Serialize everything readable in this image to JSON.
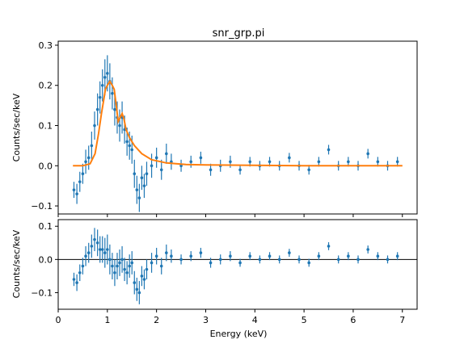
{
  "chart_data": [
    {
      "panel": "fit",
      "type": "scatter",
      "title": "snr_grp.pi",
      "ylabel": "Counts/sec/keV",
      "xlim": [
        0,
        7.3
      ],
      "ylim": [
        -0.12,
        0.31
      ],
      "xticks": [
        0,
        1,
        2,
        3,
        4,
        5,
        6,
        7
      ],
      "yticks": [
        -0.1,
        0.0,
        0.1,
        0.2,
        0.3
      ],
      "ytick_labels": [
        "−0.1",
        "0.0",
        "0.1",
        "0.2",
        "0.3"
      ],
      "grid": false,
      "series": [
        {
          "kind": "errorbar",
          "color": "#1f77b4",
          "x": [
            0.32,
            0.38,
            0.44,
            0.5,
            0.56,
            0.62,
            0.68,
            0.74,
            0.8,
            0.85,
            0.9,
            0.95,
            1.0,
            1.05,
            1.1,
            1.15,
            1.2,
            1.25,
            1.3,
            1.35,
            1.4,
            1.45,
            1.5,
            1.55,
            1.6,
            1.65,
            1.7,
            1.75,
            1.8,
            1.9,
            2.0,
            2.1,
            2.2,
            2.3,
            2.5,
            2.7,
            2.9,
            3.1,
            3.3,
            3.5,
            3.7,
            3.9,
            4.1,
            4.3,
            4.5,
            4.7,
            4.9,
            5.1,
            5.3,
            5.5,
            5.7,
            5.9,
            6.1,
            6.3,
            6.5,
            6.7,
            6.9
          ],
          "y": [
            -0.06,
            -0.07,
            -0.04,
            -0.02,
            0.01,
            0.02,
            0.05,
            0.1,
            0.14,
            0.17,
            0.2,
            0.22,
            0.23,
            0.21,
            0.18,
            0.14,
            0.12,
            0.1,
            0.12,
            0.09,
            0.06,
            0.05,
            0.04,
            -0.02,
            -0.06,
            -0.08,
            -0.03,
            -0.05,
            -0.02,
            0.0,
            0.02,
            -0.01,
            0.03,
            0.01,
            0.0,
            0.01,
            0.02,
            -0.01,
            0.0,
            0.01,
            -0.01,
            0.01,
            0.0,
            0.01,
            0.0,
            0.02,
            0.0,
            -0.01,
            0.01,
            0.04,
            0.0,
            0.01,
            0.0,
            0.03,
            0.01,
            0.0,
            0.01
          ],
          "yerr": [
            0.02,
            0.025,
            0.025,
            0.025,
            0.03,
            0.03,
            0.035,
            0.035,
            0.04,
            0.04,
            0.04,
            0.045,
            0.045,
            0.045,
            0.04,
            0.04,
            0.04,
            0.04,
            0.04,
            0.035,
            0.035,
            0.035,
            0.035,
            0.035,
            0.035,
            0.035,
            0.03,
            0.03,
            0.03,
            0.03,
            0.025,
            0.025,
            0.025,
            0.02,
            0.015,
            0.015,
            0.015,
            0.015,
            0.015,
            0.015,
            0.012,
            0.012,
            0.012,
            0.012,
            0.012,
            0.012,
            0.012,
            0.012,
            0.012,
            0.012,
            0.012,
            0.012,
            0.012,
            0.012,
            0.012,
            0.012,
            0.012
          ]
        },
        {
          "kind": "model-line",
          "color": "#ff7f0e",
          "x": [
            0.3,
            0.5,
            0.65,
            0.75,
            0.82,
            0.88,
            0.92,
            0.96,
            1.0,
            1.05,
            1.1,
            1.14,
            1.18,
            1.22,
            1.26,
            1.3,
            1.34,
            1.38,
            1.45,
            1.55,
            1.7,
            1.9,
            2.2,
            2.6,
            3.0,
            4.0,
            5.0,
            6.0,
            7.0
          ],
          "y": [
            0.0,
            0.0,
            0.005,
            0.03,
            0.08,
            0.13,
            0.16,
            0.19,
            0.2,
            0.21,
            0.2,
            0.19,
            0.15,
            0.11,
            0.12,
            0.13,
            0.115,
            0.09,
            0.07,
            0.05,
            0.03,
            0.015,
            0.007,
            0.003,
            0.002,
            0.001,
            0.0,
            0.0,
            0.0
          ]
        }
      ]
    },
    {
      "panel": "residuals",
      "type": "scatter",
      "xlabel": "Energy (keV)",
      "ylabel": "Counts/sec/keV",
      "xlim": [
        0,
        7.3
      ],
      "ylim": [
        -0.15,
        0.12
      ],
      "xticks": [
        0,
        1,
        2,
        3,
        4,
        5,
        6,
        7
      ],
      "yticks": [
        -0.1,
        0.0,
        0.1
      ],
      "ytick_labels": [
        "−0.1",
        "0.0",
        "0.1"
      ],
      "grid": false,
      "reference_line_y": 0.0,
      "series": [
        {
          "kind": "errorbar",
          "color": "#1f77b4",
          "x": [
            0.32,
            0.38,
            0.44,
            0.5,
            0.56,
            0.62,
            0.68,
            0.74,
            0.8,
            0.85,
            0.9,
            0.95,
            1.0,
            1.05,
            1.1,
            1.15,
            1.2,
            1.25,
            1.3,
            1.35,
            1.4,
            1.45,
            1.5,
            1.55,
            1.6,
            1.65,
            1.7,
            1.75,
            1.8,
            1.9,
            2.0,
            2.1,
            2.2,
            2.3,
            2.5,
            2.7,
            2.9,
            3.1,
            3.3,
            3.5,
            3.7,
            3.9,
            4.1,
            4.3,
            4.5,
            4.7,
            4.9,
            5.1,
            5.3,
            5.5,
            5.7,
            5.9,
            6.1,
            6.3,
            6.5,
            6.7,
            6.9
          ],
          "y": [
            -0.06,
            -0.07,
            -0.04,
            -0.02,
            0.01,
            0.02,
            0.04,
            0.06,
            0.05,
            0.03,
            0.03,
            0.02,
            0.03,
            0.0,
            -0.02,
            -0.04,
            -0.02,
            -0.01,
            0.0,
            -0.03,
            -0.04,
            -0.02,
            -0.01,
            -0.07,
            -0.09,
            -0.1,
            -0.05,
            -0.06,
            -0.03,
            -0.01,
            0.01,
            -0.02,
            0.02,
            0.01,
            0.0,
            0.01,
            0.02,
            -0.01,
            0.0,
            0.01,
            -0.01,
            0.01,
            0.0,
            0.01,
            0.0,
            0.02,
            0.0,
            -0.01,
            0.01,
            0.04,
            0.0,
            0.01,
            0.0,
            0.03,
            0.01,
            0.0,
            0.01
          ],
          "yerr": [
            0.02,
            0.025,
            0.025,
            0.025,
            0.03,
            0.03,
            0.035,
            0.035,
            0.04,
            0.04,
            0.04,
            0.045,
            0.045,
            0.045,
            0.04,
            0.04,
            0.04,
            0.04,
            0.04,
            0.035,
            0.035,
            0.035,
            0.035,
            0.035,
            0.035,
            0.035,
            0.03,
            0.03,
            0.03,
            0.03,
            0.025,
            0.025,
            0.025,
            0.02,
            0.015,
            0.015,
            0.015,
            0.015,
            0.015,
            0.015,
            0.012,
            0.012,
            0.012,
            0.012,
            0.012,
            0.012,
            0.012,
            0.012,
            0.012,
            0.012,
            0.012,
            0.012,
            0.012,
            0.012,
            0.012,
            0.012,
            0.012
          ]
        }
      ]
    }
  ]
}
